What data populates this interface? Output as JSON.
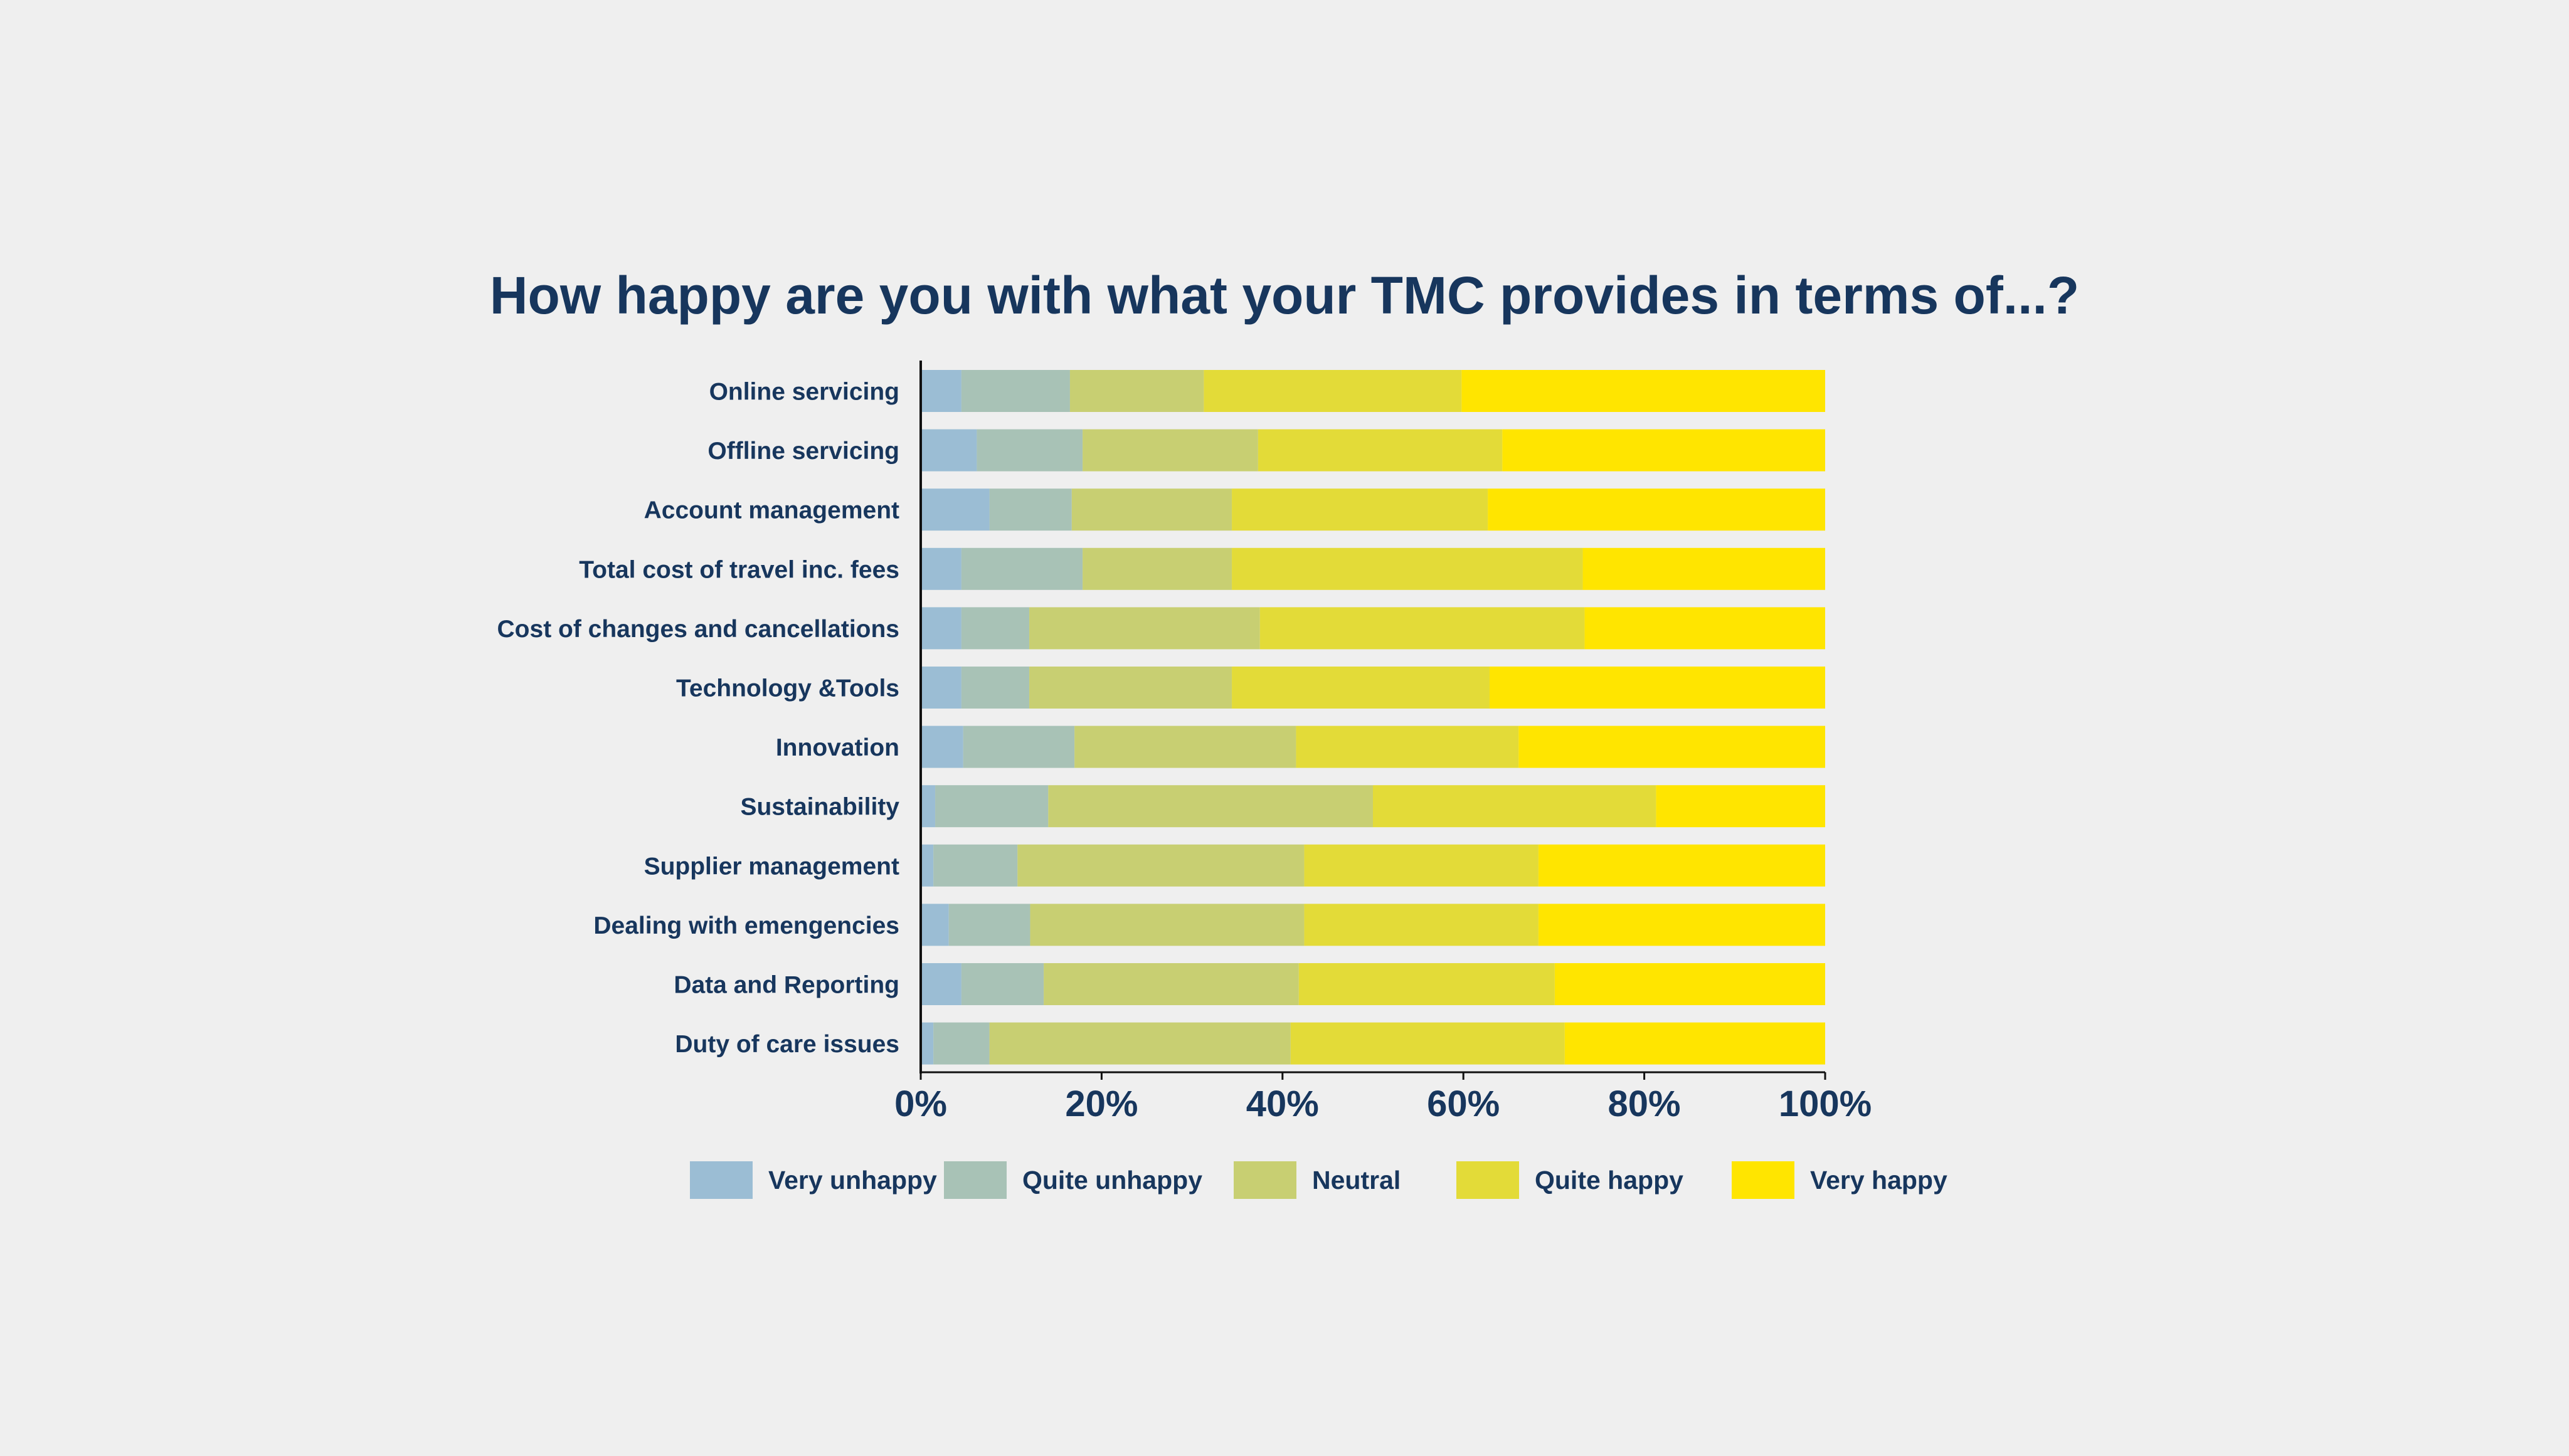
{
  "chart_data": {
    "type": "bar",
    "orientation": "horizontal",
    "stacked": true,
    "title": "How happy are you with what your TMC provides in terms of...?",
    "xlabel": "",
    "ylabel": "",
    "xlim": [
      0,
      100
    ],
    "x_ticks": [
      "0%",
      "20%",
      "40%",
      "60%",
      "80%",
      "100%"
    ],
    "grid": false,
    "legend_position": "bottom",
    "categories": [
      "Online servicing",
      "Offline servicing",
      "Account management",
      "Total cost of travel inc. fees",
      "Cost of changes and cancellations",
      "Technology &Tools",
      "Innovation",
      "Sustainability",
      "Supplier management",
      "Dealing with emengencies",
      "Data and Reporting",
      "Duty of care issues"
    ],
    "series": [
      {
        "name": "Very unhappy",
        "color": "#9bbdd4",
        "values": [
          4.5,
          6.2,
          7.6,
          4.5,
          4.5,
          4.5,
          4.7,
          1.6,
          1.4,
          3.1,
          4.5,
          1.4
        ]
      },
      {
        "name": "Quite unhappy",
        "color": "#a8c2b6",
        "values": [
          12.0,
          11.7,
          9.1,
          13.4,
          7.5,
          7.5,
          12.3,
          12.5,
          9.3,
          9.0,
          9.1,
          6.2
        ]
      },
      {
        "name": "Neutral",
        "color": "#c8cf72",
        "values": [
          14.8,
          19.4,
          17.7,
          16.5,
          25.5,
          22.4,
          24.5,
          35.9,
          31.7,
          30.3,
          28.2,
          33.3
        ]
      },
      {
        "name": "Quite happy",
        "color": "#e3db38",
        "values": [
          28.5,
          27.0,
          28.3,
          38.8,
          35.9,
          28.5,
          24.6,
          31.3,
          25.9,
          25.9,
          28.3,
          30.3
        ]
      },
      {
        "name": "Very happy",
        "color": "#ffe500",
        "values": [
          40.2,
          35.7,
          37.3,
          26.8,
          26.6,
          37.1,
          33.9,
          18.7,
          31.7,
          31.7,
          29.9,
          28.8
        ]
      }
    ]
  }
}
